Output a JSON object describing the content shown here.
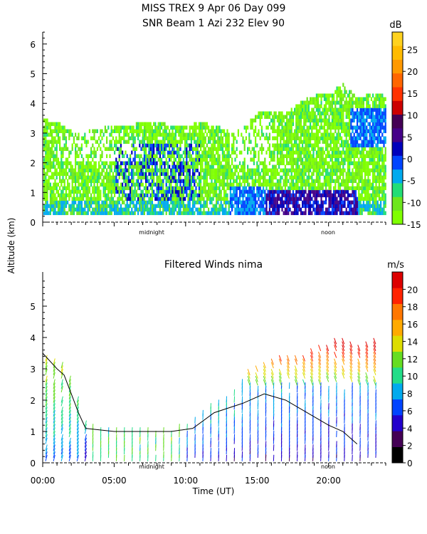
{
  "header": {
    "title_line1": "MISS TREX    9 Apr 06 Day 099",
    "title_line2": "SNR Beam 1 Azi 232 Elev 90"
  },
  "shared": {
    "ylabel": "Altitude (km)",
    "xlabel": "Time (UT)",
    "x_ticks": [
      "00:00",
      "05:00",
      "10:00",
      "15:00",
      "20:00"
    ],
    "x_tick_hours": [
      0,
      5,
      10,
      15,
      20
    ],
    "midnight_label": "midnight",
    "noon_label": "noon"
  },
  "chart_data": [
    {
      "type": "heatmap",
      "title": "SNR Beam 1 Azi 232 Elev 90",
      "xlabel": "Time (UT)",
      "ylabel": "Altitude (km)",
      "xlim_hours": [
        0,
        24
      ],
      "ylim": [
        0,
        6.4
      ],
      "y_ticks": [
        "0",
        "1",
        "2",
        "3",
        "4",
        "5",
        "6"
      ],
      "colorbar": {
        "unit": "dB",
        "range": [
          -15,
          29
        ],
        "ticks": [
          "-15",
          "-10",
          "-5",
          "0",
          "5",
          "10",
          "15",
          "20",
          "25"
        ],
        "colors": [
          "#7fff00",
          "#6ee61e",
          "#22dd77",
          "#00aaee",
          "#0044ff",
          "#0000bb",
          "#440088",
          "#440055",
          "#cc0000",
          "#ff3300",
          "#ff6600",
          "#ff9900",
          "#ffbb00",
          "#ffd21f"
        ]
      },
      "echo_top_km": [
        {
          "t": 0.0,
          "top": 3.4
        },
        {
          "t": 1.0,
          "top": 3.3
        },
        {
          "t": 2.0,
          "top": 3.0
        },
        {
          "t": 3.0,
          "top": 3.0
        },
        {
          "t": 4.0,
          "top": 3.1
        },
        {
          "t": 5.0,
          "top": 3.2
        },
        {
          "t": 6.0,
          "top": 3.2
        },
        {
          "t": 7.0,
          "top": 3.3
        },
        {
          "t": 8.0,
          "top": 3.3
        },
        {
          "t": 9.0,
          "top": 3.2
        },
        {
          "t": 10.0,
          "top": 3.2
        },
        {
          "t": 11.0,
          "top": 3.3
        },
        {
          "t": 12.0,
          "top": 3.2
        },
        {
          "t": 13.0,
          "top": 3.0
        },
        {
          "t": 14.0,
          "top": 3.1
        },
        {
          "t": 15.0,
          "top": 3.7
        },
        {
          "t": 16.0,
          "top": 3.7
        },
        {
          "t": 17.0,
          "top": 3.6
        },
        {
          "t": 18.0,
          "top": 4.0
        },
        {
          "t": 19.0,
          "top": 4.2
        },
        {
          "t": 20.0,
          "top": 4.3
        },
        {
          "t": 21.0,
          "top": 4.6
        },
        {
          "t": 22.0,
          "top": 4.1
        },
        {
          "t": 23.0,
          "top": 4.3
        },
        {
          "t": 24.0,
          "top": 4.2
        }
      ]
    },
    {
      "type": "scatter",
      "title": "Filtered Winds nima",
      "xlabel": "Time (UT)",
      "ylabel": "Altitude (km)",
      "xlim_hours": [
        0,
        24
      ],
      "ylim": [
        0,
        6.0
      ],
      "y_ticks": [
        "0",
        "1",
        "2",
        "3",
        "4",
        "5"
      ],
      "colorbar": {
        "unit": "m/s",
        "range": [
          0,
          22
        ],
        "ticks": [
          "0",
          "2",
          "4",
          "6",
          "8",
          "10",
          "12",
          "14",
          "16",
          "18",
          "20"
        ],
        "colors": [
          "#000000",
          "#440055",
          "#2200cc",
          "#0044ff",
          "#00aaee",
          "#22dd88",
          "#66dd22",
          "#dddd00",
          "#ffaa00",
          "#ff7700",
          "#ff2200",
          "#dd0000"
        ]
      },
      "wind_top_km": [
        {
          "t": 0.0,
          "top": 3.5
        },
        {
          "t": 1.0,
          "top": 3.2
        },
        {
          "t": 2.0,
          "top": 2.6
        },
        {
          "t": 2.5,
          "top": 1.8
        },
        {
          "t": 3.0,
          "top": 1.2
        },
        {
          "t": 4.0,
          "top": 1.0
        },
        {
          "t": 6.0,
          "top": 1.0
        },
        {
          "t": 8.0,
          "top": 0.9
        },
        {
          "t": 9.0,
          "top": 1.0
        },
        {
          "t": 10.0,
          "top": 1.1
        },
        {
          "t": 11.0,
          "top": 1.5
        },
        {
          "t": 12.0,
          "top": 1.8
        },
        {
          "t": 13.0,
          "top": 2.0
        },
        {
          "t": 14.0,
          "top": 2.6
        },
        {
          "t": 15.0,
          "top": 3.0
        },
        {
          "t": 16.0,
          "top": 3.2
        },
        {
          "t": 17.0,
          "top": 3.3
        },
        {
          "t": 18.0,
          "top": 3.4
        },
        {
          "t": 19.0,
          "top": 3.5
        },
        {
          "t": 20.0,
          "top": 3.7
        },
        {
          "t": 21.0,
          "top": 3.9
        },
        {
          "t": 22.0,
          "top": 3.6
        },
        {
          "t": 23.0,
          "top": 3.8
        }
      ],
      "speed_contour_km": [
        {
          "t": 0.0,
          "h": 3.5
        },
        {
          "t": 1.0,
          "h": 3.0
        },
        {
          "t": 1.5,
          "h": 2.8
        },
        {
          "t": 2.0,
          "h": 2.2
        },
        {
          "t": 2.5,
          "h": 1.6
        },
        {
          "t": 3.0,
          "h": 1.1
        },
        {
          "t": 5.0,
          "h": 1.0
        },
        {
          "t": 7.0,
          "h": 1.0
        },
        {
          "t": 9.0,
          "h": 1.0
        },
        {
          "t": 10.5,
          "h": 1.1
        },
        {
          "t": 12.0,
          "h": 1.6
        },
        {
          "t": 14.0,
          "h": 1.9
        },
        {
          "t": 15.5,
          "h": 2.2
        },
        {
          "t": 17.0,
          "h": 2.0
        },
        {
          "t": 18.5,
          "h": 1.6
        },
        {
          "t": 20.0,
          "h": 1.2
        },
        {
          "t": 21.0,
          "h": 1.0
        },
        {
          "t": 22.0,
          "h": 0.6
        }
      ]
    }
  ]
}
